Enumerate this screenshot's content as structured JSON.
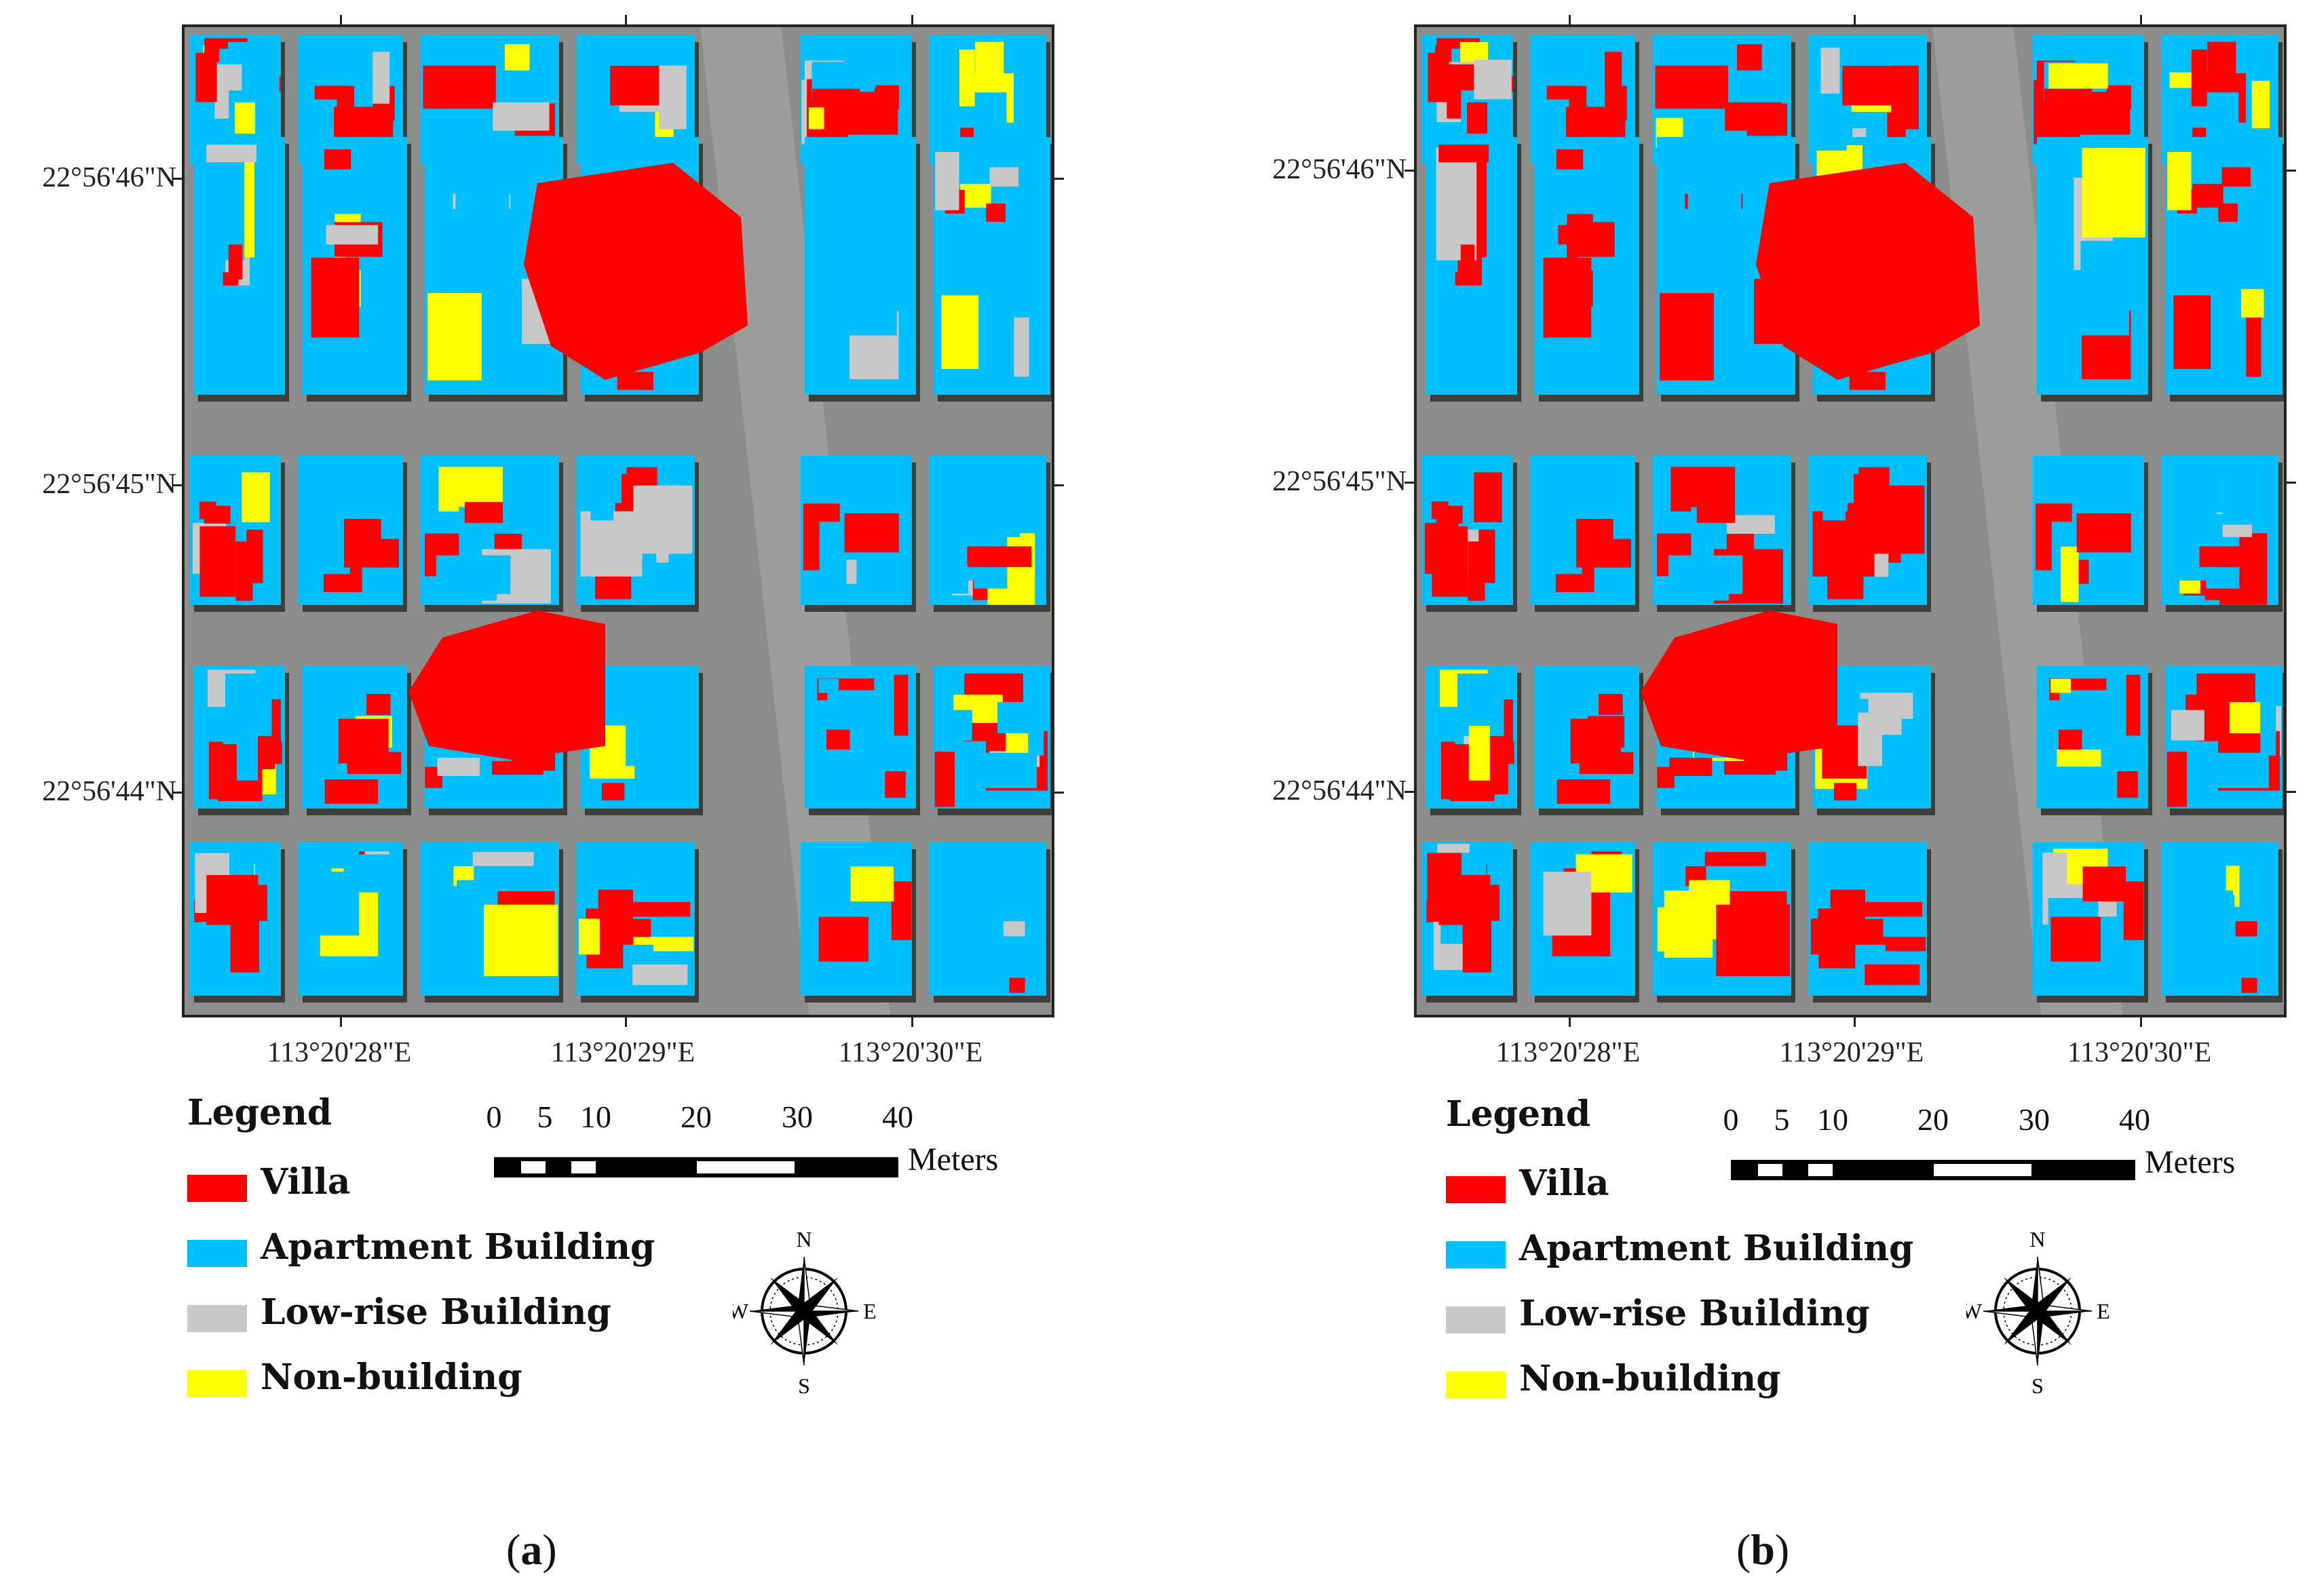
{
  "panels": [
    {
      "id": "a",
      "caption_open": "(",
      "caption_letter": "a",
      "caption_close": ")",
      "latitudes": [
        "22°56'46\"N",
        "22°56'45\"N",
        "22°56'44\"N"
      ],
      "longitudes": [
        "113°20'28\"E",
        "113°20'29\"E",
        "113°20'30\"E"
      ]
    },
    {
      "id": "b",
      "caption_open": "(",
      "caption_letter": "b",
      "caption_close": ")",
      "latitudes": [
        "22°56'46\"N",
        "22°56'45\"N",
        "22°56'44\"N"
      ],
      "longitudes": [
        "113°20'28\"E",
        "113°20'29\"E",
        "113°20'30\"E"
      ]
    }
  ],
  "legend": {
    "title": "Legend",
    "items": [
      {
        "label": "Villa",
        "color": "#ff0000"
      },
      {
        "label": "Apartment Building",
        "color": "#00bfff"
      },
      {
        "label": "Low-rise Building",
        "color": "#c8c8c8"
      },
      {
        "label": "Non-building",
        "color": "#ffff00"
      }
    ]
  },
  "scale": {
    "ticks": [
      "0",
      "5",
      "10",
      "20",
      "30",
      "40"
    ],
    "unit": "Meters"
  },
  "compass": {
    "north": "N",
    "south": "S",
    "east": "E",
    "west": "W"
  },
  "colors": {
    "villa": "#ff0000",
    "apartment": "#00bfff",
    "lowrise": "#c8c8c8",
    "nonbuilding": "#ffff00",
    "road": "#8a8d8a",
    "shadow": "#3c3f3a"
  }
}
